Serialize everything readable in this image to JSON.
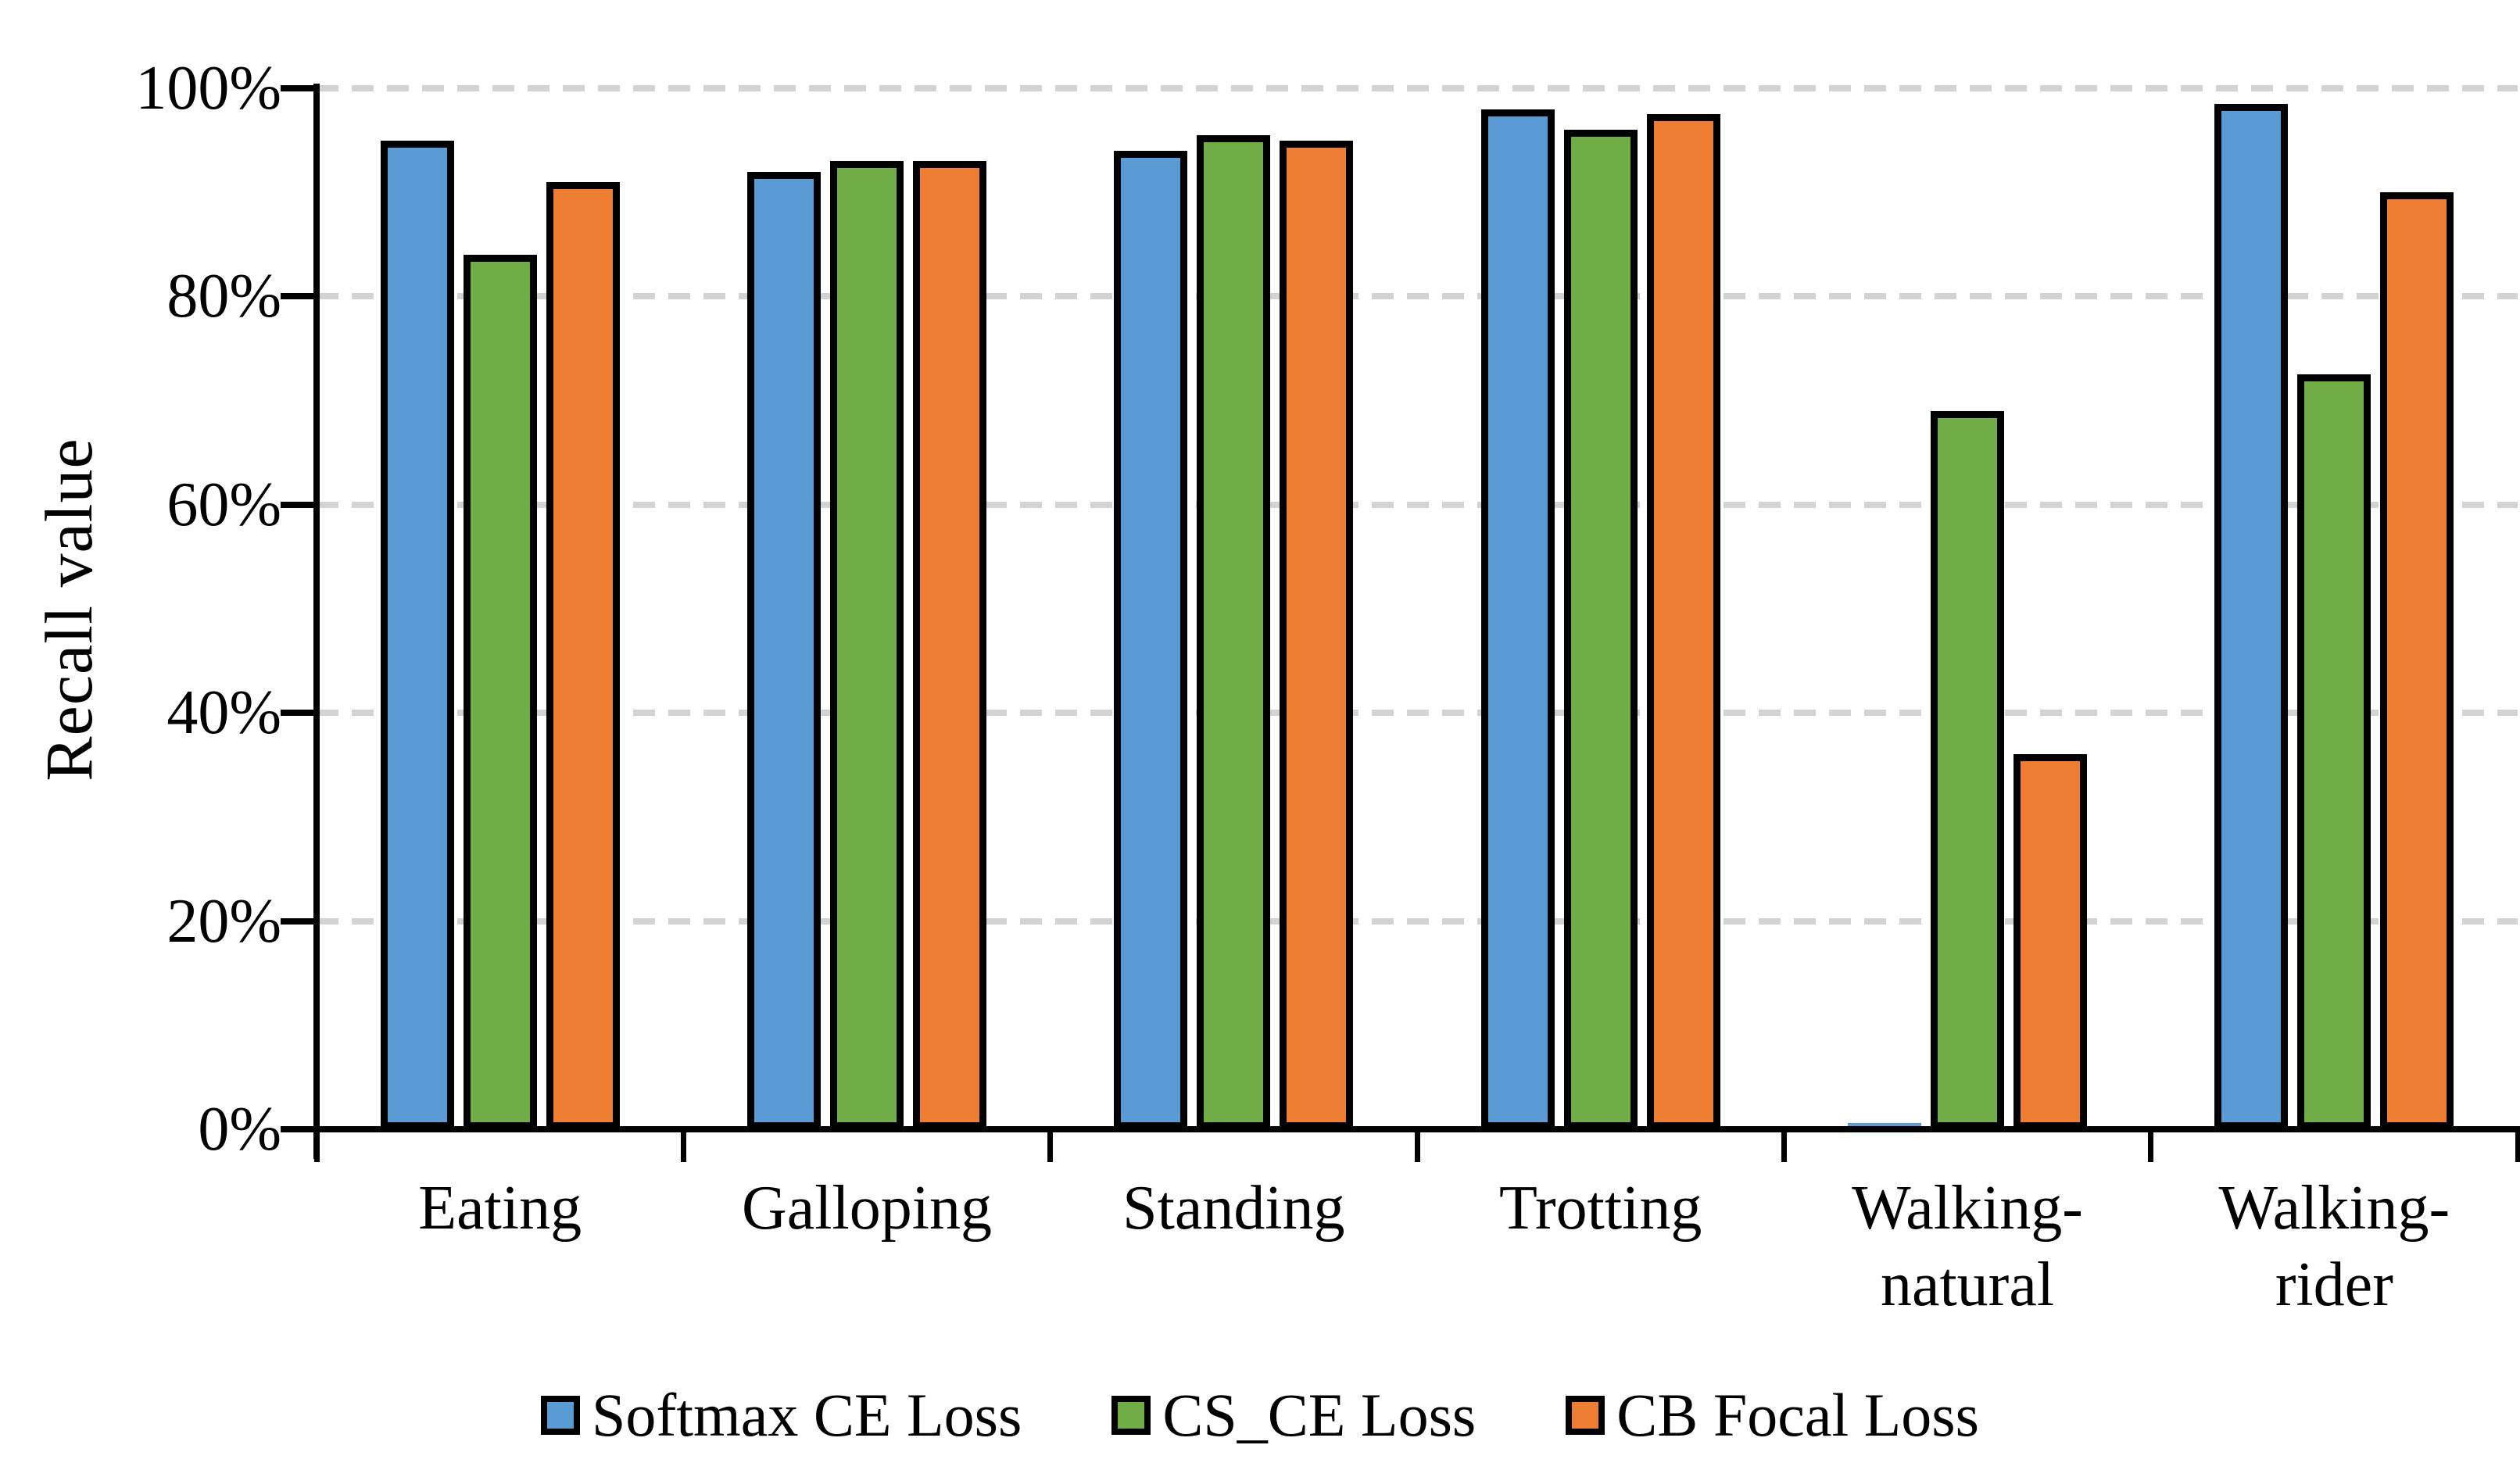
{
  "chart_data": {
    "type": "bar",
    "title": "",
    "ylabel": "Recall value",
    "xlabel": "",
    "categories": [
      "Eating",
      "Galloping",
      "Standing",
      "Trotting",
      "Walking-\nnatural",
      "Walking-\nrider"
    ],
    "series": [
      {
        "name": "Softmax CE Loss",
        "color": "#5B9BD5",
        "values": [
          95,
          92,
          94,
          98,
          0.3,
          98.5
        ]
      },
      {
        "name": "CS_CE Loss",
        "color": "#70AD47",
        "values": [
          84,
          93,
          95.5,
          96,
          69,
          72.5
        ]
      },
      {
        "name": "CB Focal Loss",
        "color": "#ED7D31",
        "values": [
          91,
          93,
          95,
          97.5,
          36,
          90
        ]
      }
    ],
    "ylim": [
      0,
      100
    ],
    "yticks": [
      "0%",
      "20%",
      "40%",
      "60%",
      "80%",
      "100%"
    ],
    "grid": "horizontal dashed gridlines at 20% steps",
    "gridline_color": "#D3D3D3",
    "axis_color": "#000000",
    "bar_border_color": "#000000",
    "legend_position": "bottom",
    "legend": [
      "Softmax CE Loss",
      "CS_CE Loss",
      "CB Focal Loss"
    ]
  },
  "background_color": "#FFFFFF"
}
